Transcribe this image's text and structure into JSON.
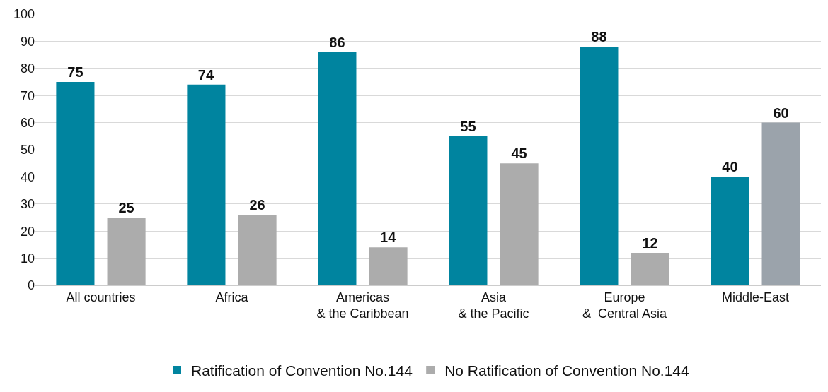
{
  "chart_data": {
    "type": "bar",
    "categories": [
      "All countries",
      "Africa",
      "Americas\n& the Caribbean",
      "Asia\n& the Pacific",
      "Europe\n&  Central Asia",
      "Middle-East"
    ],
    "series": [
      {
        "name": "Ratification of Convention No.144",
        "color": "#00849f",
        "values": [
          75,
          74,
          86,
          55,
          88,
          40
        ]
      },
      {
        "name": "No Ratification of Convention No.144",
        "color": "#acacac",
        "colors": [
          "#acacac",
          "#acacac",
          "#acacac",
          "#acacac",
          "#acacac",
          "#9ba3ab"
        ],
        "values": [
          25,
          26,
          14,
          45,
          12,
          60
        ]
      }
    ],
    "ylim": [
      0,
      100
    ],
    "yticks": [
      0,
      10,
      20,
      30,
      40,
      50,
      60,
      70,
      80,
      90,
      100
    ],
    "grid": "y",
    "legend": "bottom",
    "data_labels": true
  }
}
